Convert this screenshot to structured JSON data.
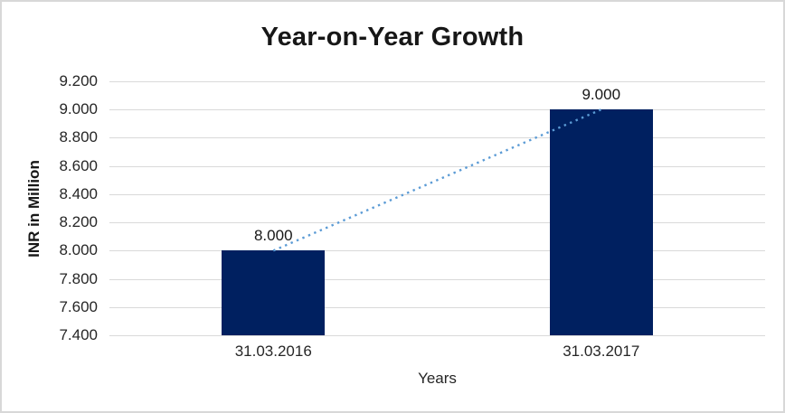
{
  "window": {
    "background": "#ffffff",
    "border_color": "#d8d8d8"
  },
  "chart_data": {
    "type": "bar",
    "title": "Year-on-Year Growth",
    "xlabel": "Years",
    "ylabel": "INR in Million",
    "categories": [
      "31.03.2016",
      "31.03.2017"
    ],
    "values": [
      8.0,
      9.0
    ],
    "data_labels": [
      "8.000",
      "9.000"
    ],
    "ylim": [
      7.4,
      9.2
    ],
    "ytick_step": 0.2,
    "ytick_labels": [
      "9.200",
      "9.000",
      "8.800",
      "8.600",
      "8.400",
      "8.200",
      "8.000",
      "7.800",
      "7.600",
      "7.400"
    ],
    "grid": true,
    "legend": false,
    "bar_color": "#002060",
    "gridline_color": "#d9d9d9",
    "trendline": {
      "style": "dotted",
      "color": "#5b9bd5",
      "from_category": "31.03.2016",
      "to_category": "31.03.2017"
    }
  }
}
